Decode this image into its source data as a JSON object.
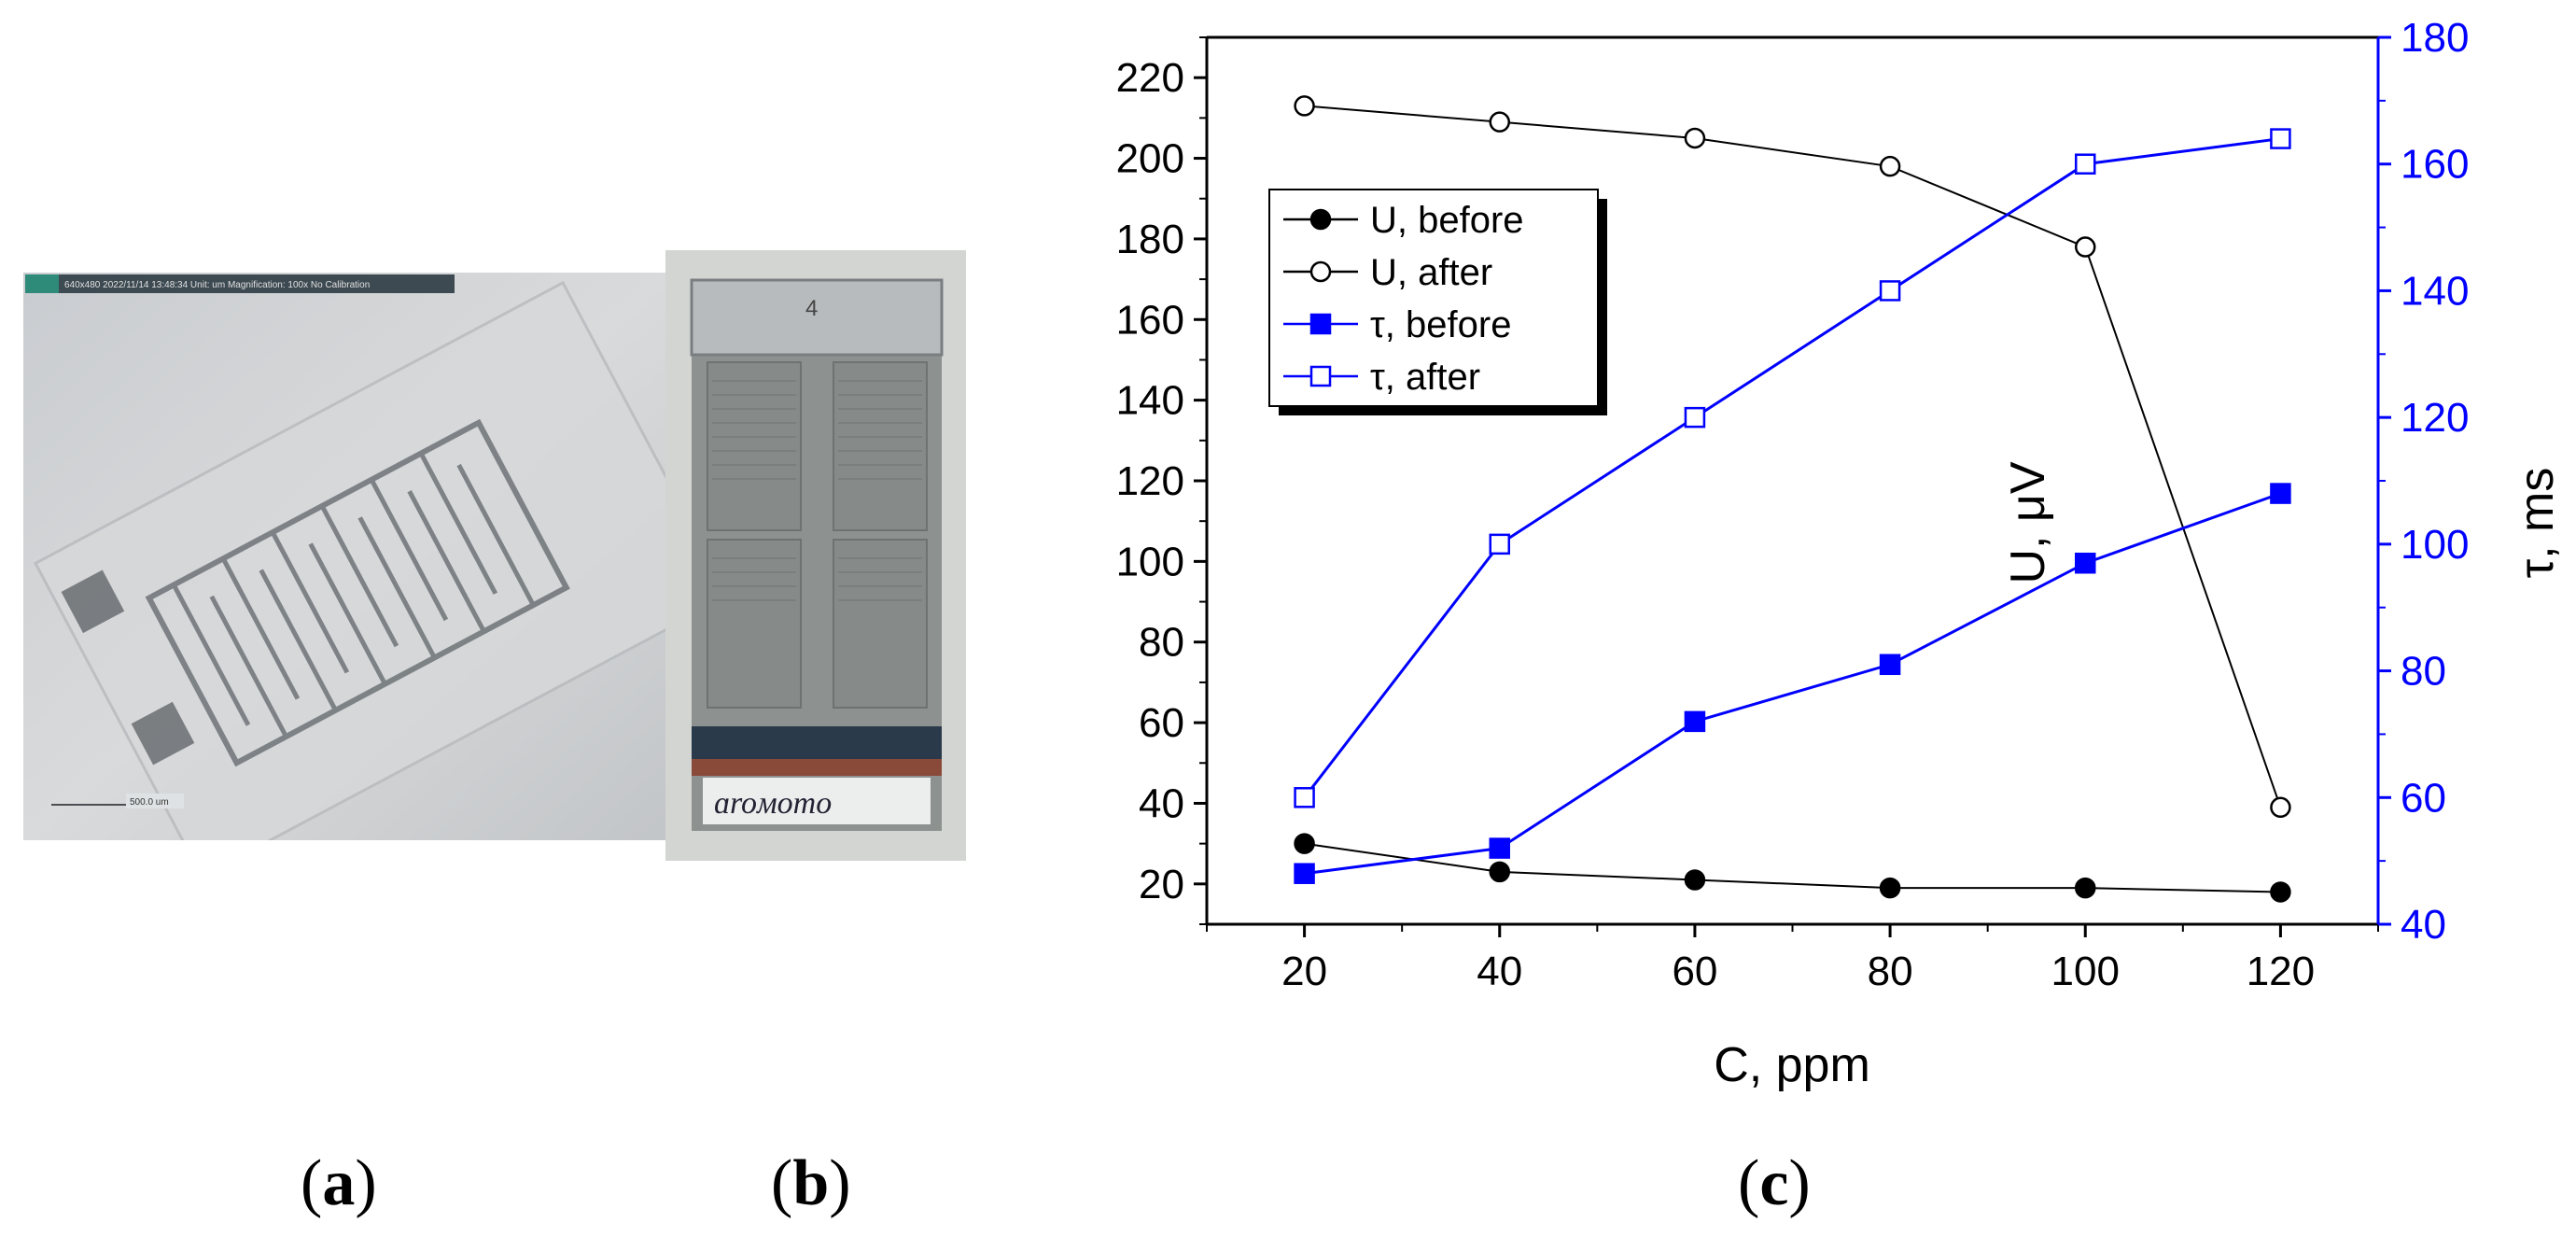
{
  "panels": {
    "a": {
      "label": "a",
      "overlay_text": "640x480  2022/11/14 13:48:34  Unit: um  Magnification: 100x  No Calibration",
      "scale_text": "500.0 um"
    },
    "b": {
      "label": "b",
      "marking": "4",
      "handwriting": "ɑroмomo"
    },
    "c": {
      "label": "c"
    }
  },
  "colors": {
    "black": "#000000",
    "blue": "#0000ff"
  },
  "chart_data": {
    "type": "line",
    "xlabel": "C, ppm",
    "ylabel": "U, μV",
    "y2label": "τ, ms",
    "xlim": [
      10,
      130
    ],
    "ylim": [
      10,
      230
    ],
    "y2lim": [
      40,
      180
    ],
    "xticks": [
      20,
      40,
      60,
      80,
      100,
      120
    ],
    "yticks": [
      20,
      40,
      60,
      80,
      100,
      120,
      140,
      160,
      180,
      200,
      220
    ],
    "y2ticks": [
      40,
      60,
      80,
      100,
      120,
      140,
      160,
      180
    ],
    "x": [
      20,
      40,
      60,
      80,
      100,
      120
    ],
    "legend_position": "upper-left",
    "series": [
      {
        "name": "U, before",
        "axis": "left",
        "color": "#000000",
        "marker": "filled-circle",
        "values": [
          30,
          23,
          21,
          19,
          19,
          18
        ]
      },
      {
        "name": "U, after",
        "axis": "left",
        "color": "#000000",
        "marker": "open-circle",
        "values": [
          213,
          209,
          205,
          198,
          178,
          39
        ]
      },
      {
        "name": "τ, before",
        "axis": "right",
        "color": "#0000ff",
        "marker": "filled-square",
        "values": [
          48,
          52,
          72,
          81,
          97,
          108
        ]
      },
      {
        "name": "τ, after",
        "axis": "right",
        "color": "#0000ff",
        "marker": "open-square",
        "values": [
          60,
          100,
          120,
          140,
          160,
          164
        ]
      }
    ]
  }
}
